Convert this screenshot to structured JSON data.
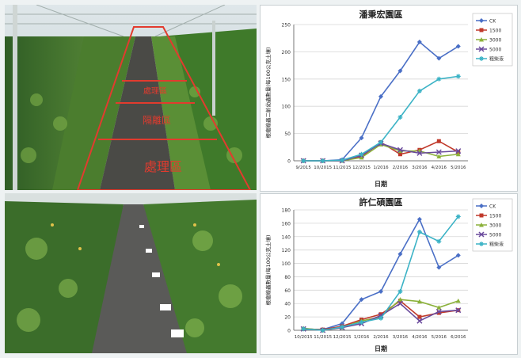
{
  "colors": {
    "CK": "#4a6fc6",
    "1500": "#c0392b",
    "3000": "#8bb13a",
    "5000": "#6a4a9c",
    "sludge": "#3cb3c6"
  },
  "photo_top": {
    "labels": {
      "near": "處理區",
      "mid": "隔離區",
      "far": "處理區"
    }
  },
  "photo_bottom": {},
  "chart_data": [
    {
      "type": "line",
      "title": "潘秉宏園區",
      "xlabel": "日期",
      "ylabel": "根瘤線蟲二齡幼蟲數量(每100公克土壤)",
      "categories": [
        "9/2015",
        "10/2015",
        "11/2015",
        "12/2015",
        "1/2016",
        "2/2016",
        "3/2016",
        "4/2016",
        "5/2016"
      ],
      "ylim": [
        0,
        250
      ],
      "yticks": [
        0,
        50,
        100,
        150,
        200,
        250
      ],
      "grid": true,
      "legend": "top-right",
      "series": [
        {
          "name": "CK",
          "color_key": "CK",
          "values": [
            0,
            0,
            2,
            42,
            118,
            165,
            218,
            188,
            210
          ]
        },
        {
          "name": "1500",
          "color_key": "1500",
          "values": [
            0,
            0,
            0,
            8,
            34,
            12,
            20,
            36,
            16
          ]
        },
        {
          "name": "3000",
          "color_key": "3000",
          "values": [
            0,
            0,
            0,
            6,
            30,
            18,
            18,
            8,
            12
          ]
        },
        {
          "name": "5000",
          "color_key": "5000",
          "values": [
            0,
            0,
            0,
            10,
            32,
            20,
            14,
            16,
            18
          ]
        },
        {
          "name": "粗柴液",
          "color_key": "sludge",
          "values": [
            0,
            0,
            1,
            12,
            34,
            80,
            128,
            150,
            155
          ]
        }
      ]
    },
    {
      "type": "line",
      "title": "許仁碩園區",
      "xlabel": "日期",
      "ylabel": "根瘤線蟲數量(每100公克土壤)",
      "categories": [
        "10/2015",
        "11/2015",
        "12/2015",
        "1/2016",
        "2/2016",
        "3/2016",
        "4/2016",
        "5/2016",
        "6/2016"
      ],
      "ylim": [
        0,
        180
      ],
      "yticks": [
        0,
        20,
        40,
        60,
        80,
        100,
        120,
        140,
        160,
        180
      ],
      "grid": true,
      "legend": "top-right",
      "series": [
        {
          "name": "CK",
          "color_key": "CK",
          "values": [
            2,
            1,
            10,
            46,
            58,
            114,
            166,
            94,
            112
          ]
        },
        {
          "name": "1500",
          "color_key": "1500",
          "values": [
            2,
            1,
            6,
            16,
            24,
            44,
            20,
            26,
            30
          ]
        },
        {
          "name": "3000",
          "color_key": "3000",
          "values": [
            3,
            0,
            4,
            14,
            20,
            46,
            43,
            34,
            44
          ]
        },
        {
          "name": "5000",
          "color_key": "5000",
          "values": [
            2,
            0,
            4,
            10,
            22,
            40,
            14,
            28,
            30
          ]
        },
        {
          "name": "粗柴液",
          "color_key": "sludge",
          "values": [
            2,
            0,
            5,
            12,
            18,
            58,
            147,
            133,
            170
          ]
        }
      ]
    }
  ]
}
